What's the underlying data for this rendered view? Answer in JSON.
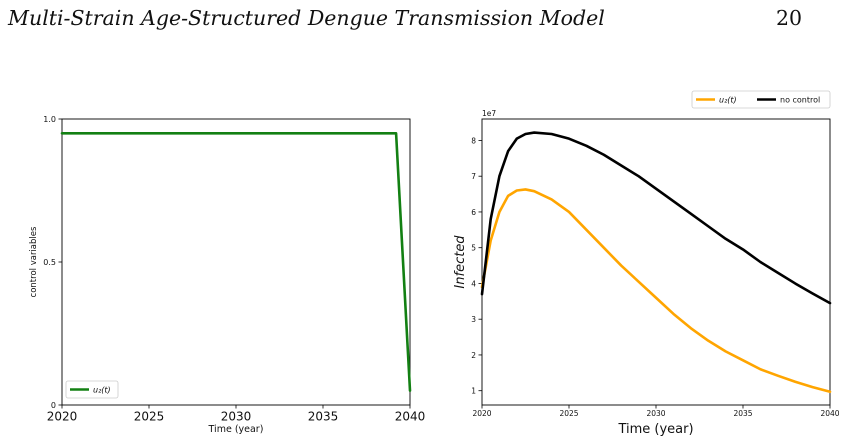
{
  "header": {
    "title": "Multi-Strain Age-Structured Dengue Transmission Model",
    "page_number": "20"
  },
  "chart_data": [
    {
      "type": "line",
      "title": "",
      "xlabel": "Time (year)",
      "ylabel": "control variables",
      "xlim": [
        2020,
        2040
      ],
      "ylim": [
        0,
        1.0
      ],
      "x_ticks": [
        "2020",
        "2025",
        "2030",
        "2035",
        "2040"
      ],
      "y_ticks": [
        "0",
        "0.5",
        "1.0"
      ],
      "legend": {
        "placement": "lower-left",
        "entries": [
          "u₂(t)"
        ]
      },
      "colors": {
        "u2": "#138013"
      },
      "series": [
        {
          "name": "u₂(t)",
          "x": [
            2020,
            2039.2,
            2040
          ],
          "y": [
            0.95,
            0.95,
            0.05
          ]
        }
      ]
    },
    {
      "type": "line",
      "title": "",
      "xlabel": "Time (year)",
      "ylabel": "Infected",
      "y_scale_label": "1e7",
      "xlim": [
        2020,
        2040
      ],
      "ylim": [
        0.6,
        8.6
      ],
      "x_ticks": [
        "2020",
        "2025",
        "2030",
        "2035",
        "2040"
      ],
      "y_ticks": [
        "1",
        "2",
        "3",
        "4",
        "5",
        "6",
        "7",
        "8"
      ],
      "legend": {
        "placement": "above-right",
        "entries": [
          "u₂(t)",
          "no control"
        ]
      },
      "colors": {
        "u2": "#ffa500",
        "no_control": "#000000"
      },
      "series": [
        {
          "name": "u₂(t)",
          "x": [
            2020,
            2020.5,
            2021,
            2021.5,
            2022,
            2022.5,
            2023,
            2024,
            2025,
            2026,
            2027,
            2028,
            2029,
            2030,
            2031,
            2032,
            2033,
            2034,
            2035,
            2036,
            2037,
            2038,
            2039,
            2040
          ],
          "y": [
            3.9,
            5.2,
            6.0,
            6.45,
            6.6,
            6.63,
            6.58,
            6.35,
            6.0,
            5.5,
            5.0,
            4.5,
            4.05,
            3.6,
            3.15,
            2.75,
            2.4,
            2.1,
            1.85,
            1.6,
            1.42,
            1.25,
            1.1,
            0.97
          ]
        },
        {
          "name": "no control",
          "x": [
            2020,
            2020.5,
            2021,
            2021.5,
            2022,
            2022.5,
            2023,
            2024,
            2025,
            2026,
            2027,
            2028,
            2029,
            2030,
            2031,
            2032,
            2033,
            2034,
            2035,
            2036,
            2037,
            2038,
            2039,
            2040
          ],
          "y": [
            3.7,
            5.8,
            7.0,
            7.7,
            8.05,
            8.18,
            8.22,
            8.18,
            8.05,
            7.85,
            7.6,
            7.3,
            7.0,
            6.65,
            6.3,
            5.95,
            5.6,
            5.25,
            4.95,
            4.6,
            4.3,
            4.0,
            3.72,
            3.45
          ]
        }
      ]
    }
  ]
}
